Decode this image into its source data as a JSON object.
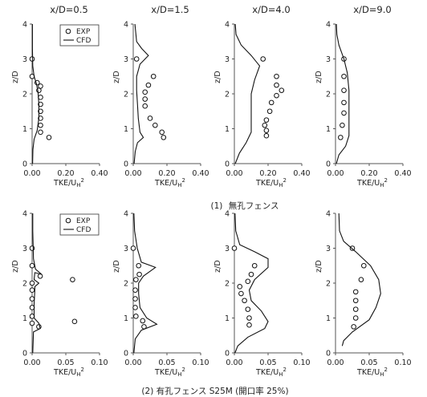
{
  "chart_data": [
    {
      "type": "scatter",
      "title": "x/D=0.5",
      "xlabel": "TKE/U",
      "xlabel_sub": "H",
      "xlabel_sup": "2",
      "ylabel": "z/D",
      "xlim": [
        0,
        0.4
      ],
      "ylim": [
        0,
        4
      ],
      "xticks": [
        "0.00",
        "0.20",
        "0.40"
      ],
      "yticks": [
        "0",
        "1",
        "2",
        "3",
        "4"
      ],
      "legend": {
        "items": [
          "EXP",
          "CFD"
        ],
        "placement": "top-right"
      },
      "series": [
        {
          "name": "EXP",
          "kind": "markers",
          "points": [
            [
              0.0,
              3.0
            ],
            [
              0.0,
              2.5
            ],
            [
              0.03,
              2.32
            ],
            [
              0.05,
              2.22
            ],
            [
              0.04,
              2.1
            ],
            [
              0.05,
              1.9
            ],
            [
              0.05,
              1.7
            ],
            [
              0.05,
              1.5
            ],
            [
              0.05,
              1.3
            ],
            [
              0.05,
              1.1
            ],
            [
              0.05,
              0.9
            ],
            [
              0.1,
              0.75
            ]
          ]
        },
        {
          "name": "CFD",
          "kind": "line",
          "points": [
            [
              0.003,
              0
            ],
            [
              0.005,
              0.4
            ],
            [
              0.012,
              0.7
            ],
            [
              0.03,
              0.95
            ],
            [
              0.04,
              1.3
            ],
            [
              0.04,
              1.7
            ],
            [
              0.035,
              2.05
            ],
            [
              0.025,
              2.3
            ],
            [
              0.012,
              2.5
            ],
            [
              0.004,
              2.8
            ],
            [
              0.002,
              3.3
            ],
            [
              0.002,
              4.0
            ]
          ]
        }
      ]
    },
    {
      "type": "scatter",
      "title": "x/D=1.5",
      "xlabel": "TKE/U",
      "xlabel_sub": "H",
      "xlabel_sup": "2",
      "ylabel": "z/D",
      "xlim": [
        0,
        0.4
      ],
      "ylim": [
        0,
        4
      ],
      "xticks": [
        "0.00",
        "0.20",
        "0.40"
      ],
      "yticks": [
        "0",
        "1",
        "2",
        "3",
        "4"
      ],
      "series": [
        {
          "name": "EXP",
          "kind": "markers",
          "points": [
            [
              0.02,
              3.0
            ],
            [
              0.12,
              2.5
            ],
            [
              0.09,
              2.25
            ],
            [
              0.07,
              2.05
            ],
            [
              0.07,
              1.85
            ],
            [
              0.07,
              1.65
            ],
            [
              0.1,
              1.3
            ],
            [
              0.13,
              1.1
            ],
            [
              0.17,
              0.9
            ],
            [
              0.18,
              0.75
            ]
          ]
        },
        {
          "name": "CFD",
          "kind": "line",
          "points": [
            [
              0.005,
              0
            ],
            [
              0.012,
              0.35
            ],
            [
              0.025,
              0.6
            ],
            [
              0.06,
              0.75
            ],
            [
              0.04,
              0.9
            ],
            [
              0.03,
              1.3
            ],
            [
              0.025,
              1.7
            ],
            [
              0.02,
              2.1
            ],
            [
              0.02,
              2.5
            ],
            [
              0.04,
              2.85
            ],
            [
              0.09,
              3.1
            ],
            [
              0.05,
              3.3
            ],
            [
              0.02,
              3.5
            ],
            [
              0.01,
              4.0
            ]
          ]
        }
      ]
    },
    {
      "type": "scatter",
      "title": "x/D=4.0",
      "xlabel": "TKE/U",
      "xlabel_sub": "H",
      "xlabel_sup": "2",
      "ylabel": "z/D",
      "xlim": [
        0,
        0.4
      ],
      "ylim": [
        0,
        4
      ],
      "xticks": [
        "0.00",
        "0.20",
        "0.40"
      ],
      "yticks": [
        "0",
        "1",
        "2",
        "3",
        "4"
      ],
      "series": [
        {
          "name": "EXP",
          "kind": "markers",
          "points": [
            [
              0.17,
              3.0
            ],
            [
              0.25,
              2.5
            ],
            [
              0.25,
              2.25
            ],
            [
              0.28,
              2.1
            ],
            [
              0.25,
              1.95
            ],
            [
              0.22,
              1.75
            ],
            [
              0.21,
              1.5
            ],
            [
              0.19,
              1.25
            ],
            [
              0.18,
              1.1
            ],
            [
              0.19,
              0.95
            ],
            [
              0.19,
              0.8
            ]
          ]
        },
        {
          "name": "CFD",
          "kind": "line",
          "points": [
            [
              0.005,
              0
            ],
            [
              0.03,
              0.3
            ],
            [
              0.07,
              0.6
            ],
            [
              0.1,
              0.9
            ],
            [
              0.1,
              1.3
            ],
            [
              0.1,
              1.6
            ],
            [
              0.1,
              2.0
            ],
            [
              0.12,
              2.4
            ],
            [
              0.15,
              2.8
            ],
            [
              0.1,
              3.1
            ],
            [
              0.04,
              3.4
            ],
            [
              0.01,
              3.7
            ],
            [
              0.005,
              4.0
            ]
          ]
        }
      ]
    },
    {
      "type": "scatter",
      "title": "x/D=9.0",
      "xlabel": "TKE/U",
      "xlabel_sub": "H",
      "xlabel_sup": "2",
      "ylabel": "z/D",
      "xlim": [
        0,
        0.4
      ],
      "ylim": [
        0,
        4
      ],
      "xticks": [
        "0.00",
        "0.20",
        "0.40"
      ],
      "yticks": [
        "0",
        "1",
        "2",
        "3",
        "4"
      ],
      "series": [
        {
          "name": "EXP",
          "kind": "markers",
          "points": [
            [
              0.05,
              3.0
            ],
            [
              0.05,
              2.5
            ],
            [
              0.05,
              2.1
            ],
            [
              0.05,
              1.75
            ],
            [
              0.05,
              1.45
            ],
            [
              0.04,
              1.1
            ],
            [
              0.03,
              0.75
            ]
          ]
        },
        {
          "name": "CFD",
          "kind": "line",
          "points": [
            [
              0.005,
              0
            ],
            [
              0.02,
              0.25
            ],
            [
              0.06,
              0.5
            ],
            [
              0.08,
              0.8
            ],
            [
              0.08,
              1.2
            ],
            [
              0.08,
              1.7
            ],
            [
              0.08,
              2.1
            ],
            [
              0.07,
              2.6
            ],
            [
              0.05,
              3.0
            ],
            [
              0.02,
              3.4
            ],
            [
              0.008,
              3.7
            ],
            [
              0.005,
              4.0
            ]
          ]
        }
      ]
    },
    {
      "type": "scatter",
      "title": "",
      "xlabel": "TKE/U",
      "xlabel_sub": "H",
      "xlabel_sup": "2",
      "ylabel": "z/D",
      "xlim": [
        0,
        0.1
      ],
      "ylim": [
        0,
        4
      ],
      "xticks": [
        "0.00",
        "0.05",
        "0.10"
      ],
      "yticks": [
        "0",
        "1",
        "2",
        "3",
        "4"
      ],
      "legend": {
        "items": [
          "EXP",
          "CFD"
        ],
        "placement": "top-right"
      },
      "series": [
        {
          "name": "EXP",
          "kind": "markers",
          "points": [
            [
              0.0,
              3.0
            ],
            [
              0.0,
              2.5
            ],
            [
              0.012,
              2.2
            ],
            [
              0.0,
              2.0
            ],
            [
              0.0,
              1.8
            ],
            [
              0.0,
              1.55
            ],
            [
              0.0,
              1.3
            ],
            [
              0.0,
              1.05
            ],
            [
              0.0,
              0.85
            ],
            [
              0.01,
              0.75
            ],
            [
              0.06,
              2.1
            ],
            [
              0.063,
              0.9
            ]
          ]
        },
        {
          "name": "CFD",
          "kind": "line",
          "points": [
            [
              0.001,
              0
            ],
            [
              0.002,
              0.6
            ],
            [
              0.012,
              0.7
            ],
            [
              0.01,
              0.85
            ],
            [
              0.003,
              1.0
            ],
            [
              0.003,
              1.4
            ],
            [
              0.004,
              1.8
            ],
            [
              0.004,
              1.9
            ],
            [
              0.01,
              2.0
            ],
            [
              0.003,
              2.1
            ],
            [
              0.004,
              2.3
            ],
            [
              0.014,
              2.25
            ],
            [
              0.005,
              2.4
            ],
            [
              0.002,
              2.7
            ],
            [
              0.001,
              3.5
            ],
            [
              0.001,
              4.0
            ]
          ]
        }
      ]
    },
    {
      "type": "scatter",
      "title": "",
      "xlabel": "TKE/U",
      "xlabel_sub": "H",
      "xlabel_sup": "2",
      "ylabel": "z/D",
      "xlim": [
        0,
        0.1
      ],
      "ylim": [
        0,
        4
      ],
      "xticks": [
        "0.00",
        "0.05",
        "0.10"
      ],
      "yticks": [
        "0",
        "1",
        "2",
        "3",
        "4"
      ],
      "series": [
        {
          "name": "EXP",
          "kind": "markers",
          "points": [
            [
              0.0,
              3.0
            ],
            [
              0.008,
              2.5
            ],
            [
              0.009,
              2.25
            ],
            [
              0.004,
              2.1
            ],
            [
              0.003,
              1.8
            ],
            [
              0.003,
              1.55
            ],
            [
              0.003,
              1.3
            ],
            [
              0.004,
              1.05
            ],
            [
              0.014,
              0.92
            ],
            [
              0.016,
              0.75
            ]
          ]
        },
        {
          "name": "CFD",
          "kind": "line",
          "points": [
            [
              0.001,
              0
            ],
            [
              0.003,
              0.4
            ],
            [
              0.012,
              0.65
            ],
            [
              0.035,
              0.82
            ],
            [
              0.02,
              1.0
            ],
            [
              0.01,
              1.3
            ],
            [
              0.008,
              1.7
            ],
            [
              0.008,
              2.0
            ],
            [
              0.015,
              2.2
            ],
            [
              0.033,
              2.45
            ],
            [
              0.012,
              2.6
            ],
            [
              0.006,
              3.0
            ],
            [
              0.002,
              3.5
            ],
            [
              0.001,
              4.0
            ]
          ]
        }
      ]
    },
    {
      "type": "scatter",
      "title": "",
      "xlabel": "TKE/U",
      "xlabel_sub": "H",
      "xlabel_sup": "2",
      "ylabel": "z/D",
      "xlim": [
        0,
        0.1
      ],
      "ylim": [
        0,
        4
      ],
      "xticks": [
        "0.00",
        "0.05",
        "0.10"
      ],
      "yticks": [
        "0",
        "1",
        "2",
        "3",
        "4"
      ],
      "series": [
        {
          "name": "EXP",
          "kind": "markers",
          "points": [
            [
              0.0,
              3.0
            ],
            [
              0.03,
              2.5
            ],
            [
              0.025,
              2.25
            ],
            [
              0.02,
              2.05
            ],
            [
              0.008,
              1.9
            ],
            [
              0.01,
              1.7
            ],
            [
              0.015,
              1.5
            ],
            [
              0.02,
              1.25
            ],
            [
              0.022,
              1.0
            ],
            [
              0.022,
              0.8
            ]
          ]
        },
        {
          "name": "CFD",
          "kind": "line",
          "points": [
            [
              0.001,
              0
            ],
            [
              0.005,
              0.2
            ],
            [
              0.02,
              0.45
            ],
            [
              0.045,
              0.7
            ],
            [
              0.05,
              0.9
            ],
            [
              0.04,
              1.2
            ],
            [
              0.025,
              1.5
            ],
            [
              0.022,
              1.8
            ],
            [
              0.03,
              2.1
            ],
            [
              0.05,
              2.45
            ],
            [
              0.05,
              2.7
            ],
            [
              0.03,
              2.9
            ],
            [
              0.008,
              3.1
            ],
            [
              0.002,
              3.5
            ],
            [
              0.001,
              4.0
            ]
          ]
        }
      ]
    },
    {
      "type": "scatter",
      "title": "",
      "xlabel": "TKE/U",
      "xlabel_sub": "H",
      "xlabel_sup": "2",
      "ylabel": "z/D",
      "xlim": [
        0,
        0.1
      ],
      "ylim": [
        0,
        4
      ],
      "xticks": [
        "0.00",
        "0.05",
        "0.10"
      ],
      "yticks": [
        "0",
        "1",
        "2",
        "3",
        "4"
      ],
      "series": [
        {
          "name": "EXP",
          "kind": "markers",
          "points": [
            [
              0.025,
              3.0
            ],
            [
              0.042,
              2.5
            ],
            [
              0.038,
              2.1
            ],
            [
              0.03,
              1.75
            ],
            [
              0.03,
              1.5
            ],
            [
              0.03,
              1.25
            ],
            [
              0.03,
              1.0
            ],
            [
              0.027,
              0.75
            ]
          ]
        },
        {
          "name": "CFD",
          "kind": "line",
          "points": [
            [
              0.01,
              0.2
            ],
            [
              0.012,
              0.35
            ],
            [
              0.025,
              0.6
            ],
            [
              0.05,
              0.95
            ],
            [
              0.06,
              1.3
            ],
            [
              0.067,
              1.7
            ],
            [
              0.064,
              2.1
            ],
            [
              0.052,
              2.5
            ],
            [
              0.03,
              2.9
            ],
            [
              0.012,
              3.2
            ],
            [
              0.006,
              3.5
            ],
            [
              0.005,
              4.0
            ]
          ]
        }
      ]
    }
  ],
  "captions": {
    "row1_marker": "(1)",
    "row1_text": "無孔フェンス",
    "row2_text": "(2) 有孔フェンス S25M (開口率 25%)"
  }
}
